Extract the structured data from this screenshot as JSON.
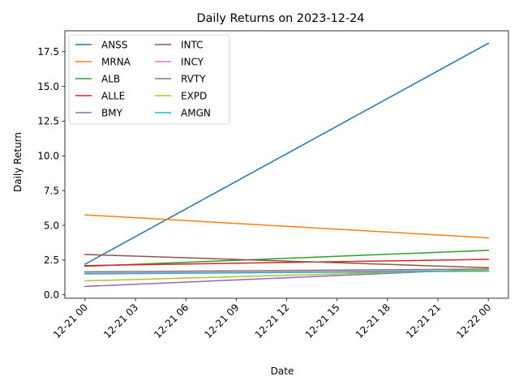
{
  "chart_data": {
    "type": "line",
    "title": "Daily Returns on 2023-12-24",
    "xlabel": "Date",
    "ylabel": "Daily Return",
    "x": [
      "12-21 00",
      "12-22 00"
    ],
    "x_hours": [
      0,
      24
    ],
    "xlim_hours": [
      -1.2,
      25.2
    ],
    "ylim": [
      -0.25,
      19.0
    ],
    "x_ticks": [
      {
        "hour": 0,
        "label": "12-21 00"
      },
      {
        "hour": 3,
        "label": "12-21 03"
      },
      {
        "hour": 6,
        "label": "12-21 06"
      },
      {
        "hour": 9,
        "label": "12-21 09"
      },
      {
        "hour": 12,
        "label": "12-21 12"
      },
      {
        "hour": 15,
        "label": "12-21 15"
      },
      {
        "hour": 18,
        "label": "12-21 18"
      },
      {
        "hour": 21,
        "label": "12-21 21"
      },
      {
        "hour": 24,
        "label": "12-22 00"
      }
    ],
    "y_ticks": [
      {
        "value": 0.0,
        "label": "0.0"
      },
      {
        "value": 2.5,
        "label": "2.5"
      },
      {
        "value": 5.0,
        "label": "5.0"
      },
      {
        "value": 7.5,
        "label": "7.5"
      },
      {
        "value": 10.0,
        "label": "10.0"
      },
      {
        "value": 12.5,
        "label": "12.5"
      },
      {
        "value": 15.0,
        "label": "15.0"
      },
      {
        "value": 17.5,
        "label": "17.5"
      }
    ],
    "grid": false,
    "legend_position": "top-left",
    "legend_columns": 2,
    "series": [
      {
        "name": "ANSS",
        "color": "#1f77b4",
        "values": [
          2.2,
          18.1
        ]
      },
      {
        "name": "MRNA",
        "color": "#ff7f0e",
        "values": [
          5.75,
          4.1
        ]
      },
      {
        "name": "ALB",
        "color": "#2ca02c",
        "values": [
          2.05,
          3.2
        ]
      },
      {
        "name": "ALLE",
        "color": "#d62728",
        "values": [
          2.1,
          2.55
        ]
      },
      {
        "name": "BMY",
        "color": "#9467bd",
        "values": [
          0.6,
          1.85
        ]
      },
      {
        "name": "INTC",
        "color": "#8c564b",
        "values": [
          2.9,
          1.95
        ]
      },
      {
        "name": "INCY",
        "color": "#e377c2",
        "values": [
          1.55,
          1.75
        ]
      },
      {
        "name": "RVTY",
        "color": "#7f7f7f",
        "values": [
          1.65,
          1.85
        ]
      },
      {
        "name": "EXPD",
        "color": "#bcbd22",
        "values": [
          1.0,
          1.8
        ]
      },
      {
        "name": "AMGN",
        "color": "#17becf",
        "values": [
          1.5,
          1.7
        ]
      }
    ]
  }
}
